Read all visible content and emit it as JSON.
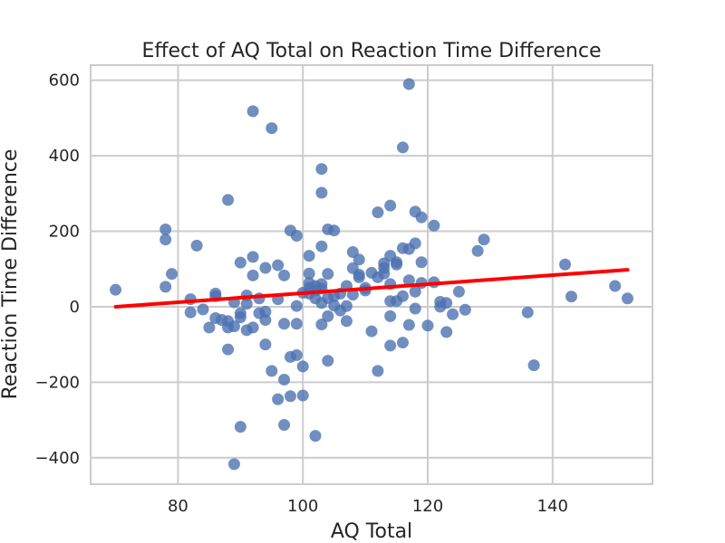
{
  "chart_data": {
    "type": "scatter",
    "title": "Effect of AQ Total on Reaction Time Difference",
    "xlabel": "AQ Total",
    "ylabel": "Reaction Time Difference",
    "xlim": [
      66,
      156
    ],
    "ylim": [
      -470,
      640
    ],
    "xticks": [
      80,
      100,
      120,
      140
    ],
    "yticks": [
      -400,
      -200,
      0,
      200,
      400,
      600
    ],
    "xtick_labels": [
      "80",
      "100",
      "120",
      "140"
    ],
    "ytick_labels": [
      "−400",
      "−200",
      "0",
      "200",
      "400",
      "600"
    ],
    "grid": true,
    "point_color": "#4c72b0",
    "line_color": "#ff0000",
    "points": [
      [
        70,
        45
      ],
      [
        78,
        205
      ],
      [
        78,
        178
      ],
      [
        78,
        53
      ],
      [
        79,
        87
      ],
      [
        82,
        20
      ],
      [
        82,
        -15
      ],
      [
        83,
        162
      ],
      [
        84,
        -7
      ],
      [
        85,
        -55
      ],
      [
        86,
        35
      ],
      [
        86,
        28
      ],
      [
        86,
        -30
      ],
      [
        87,
        -35
      ],
      [
        88,
        283
      ],
      [
        88,
        -55
      ],
      [
        88,
        -38
      ],
      [
        88,
        -113
      ],
      [
        89,
        12
      ],
      [
        89,
        -52
      ],
      [
        89,
        -417
      ],
      [
        90,
        117
      ],
      [
        90,
        -17
      ],
      [
        90,
        -28
      ],
      [
        90,
        -318
      ],
      [
        91,
        30
      ],
      [
        91,
        8
      ],
      [
        91,
        -62
      ],
      [
        92,
        518
      ],
      [
        92,
        132
      ],
      [
        92,
        83
      ],
      [
        92,
        -55
      ],
      [
        93,
        22
      ],
      [
        93,
        -17
      ],
      [
        94,
        103
      ],
      [
        94,
        -13
      ],
      [
        94,
        -35
      ],
      [
        94,
        -100
      ],
      [
        95,
        473
      ],
      [
        95,
        -170
      ],
      [
        96,
        110
      ],
      [
        96,
        20
      ],
      [
        96,
        -245
      ],
      [
        97,
        83
      ],
      [
        97,
        -45
      ],
      [
        97,
        -193
      ],
      [
        97,
        -313
      ],
      [
        98,
        202
      ],
      [
        98,
        -133
      ],
      [
        98,
        -237
      ],
      [
        99,
        188
      ],
      [
        99,
        2
      ],
      [
        99,
        -45
      ],
      [
        99,
        -128
      ],
      [
        100,
        37
      ],
      [
        100,
        -158
      ],
      [
        100,
        -235
      ],
      [
        101,
        135
      ],
      [
        101,
        88
      ],
      [
        101,
        63
      ],
      [
        101,
        50
      ],
      [
        101,
        35
      ],
      [
        102,
        55
      ],
      [
        102,
        43
      ],
      [
        102,
        22
      ],
      [
        102,
        -342
      ],
      [
        103,
        365
      ],
      [
        103,
        302
      ],
      [
        103,
        160
      ],
      [
        103,
        60
      ],
      [
        103,
        48
      ],
      [
        103,
        10
      ],
      [
        103,
        -47
      ],
      [
        104,
        205
      ],
      [
        104,
        87
      ],
      [
        104,
        23
      ],
      [
        104,
        -25
      ],
      [
        104,
        -143
      ],
      [
        105,
        202
      ],
      [
        105,
        28
      ],
      [
        105,
        3
      ],
      [
        106,
        35
      ],
      [
        106,
        -10
      ],
      [
        107,
        55
      ],
      [
        107,
        2
      ],
      [
        107,
        -38
      ],
      [
        108,
        145
      ],
      [
        108,
        102
      ],
      [
        108,
        32
      ],
      [
        109,
        125
      ],
      [
        109,
        85
      ],
      [
        109,
        78
      ],
      [
        110,
        50
      ],
      [
        110,
        43
      ],
      [
        111,
        90
      ],
      [
        111,
        -65
      ],
      [
        112,
        250
      ],
      [
        112,
        78
      ],
      [
        112,
        -170
      ],
      [
        113,
        115
      ],
      [
        113,
        103
      ],
      [
        113,
        88
      ],
      [
        114,
        268
      ],
      [
        114,
        135
      ],
      [
        114,
        60
      ],
      [
        114,
        15
      ],
      [
        114,
        -25
      ],
      [
        114,
        -103
      ],
      [
        115,
        118
      ],
      [
        115,
        112
      ],
      [
        115,
        15
      ],
      [
        116,
        422
      ],
      [
        116,
        155
      ],
      [
        116,
        28
      ],
      [
        116,
        -95
      ],
      [
        117,
        590
      ],
      [
        117,
        153
      ],
      [
        117,
        70
      ],
      [
        117,
        -48
      ],
      [
        118,
        252
      ],
      [
        118,
        168
      ],
      [
        118,
        40
      ],
      [
        118,
        -5
      ],
      [
        119,
        237
      ],
      [
        119,
        118
      ],
      [
        119,
        63
      ],
      [
        120,
        -50
      ],
      [
        121,
        215
      ],
      [
        121,
        65
      ],
      [
        122,
        13
      ],
      [
        122,
        0
      ],
      [
        123,
        10
      ],
      [
        123,
        -67
      ],
      [
        124,
        -20
      ],
      [
        125,
        40
      ],
      [
        126,
        -8
      ],
      [
        128,
        148
      ],
      [
        129,
        178
      ],
      [
        136,
        -15
      ],
      [
        137,
        -155
      ],
      [
        142,
        112
      ],
      [
        143,
        27
      ],
      [
        150,
        55
      ],
      [
        152,
        22
      ]
    ],
    "regression": {
      "x": [
        70,
        152
      ],
      "y": [
        0,
        98
      ]
    }
  }
}
